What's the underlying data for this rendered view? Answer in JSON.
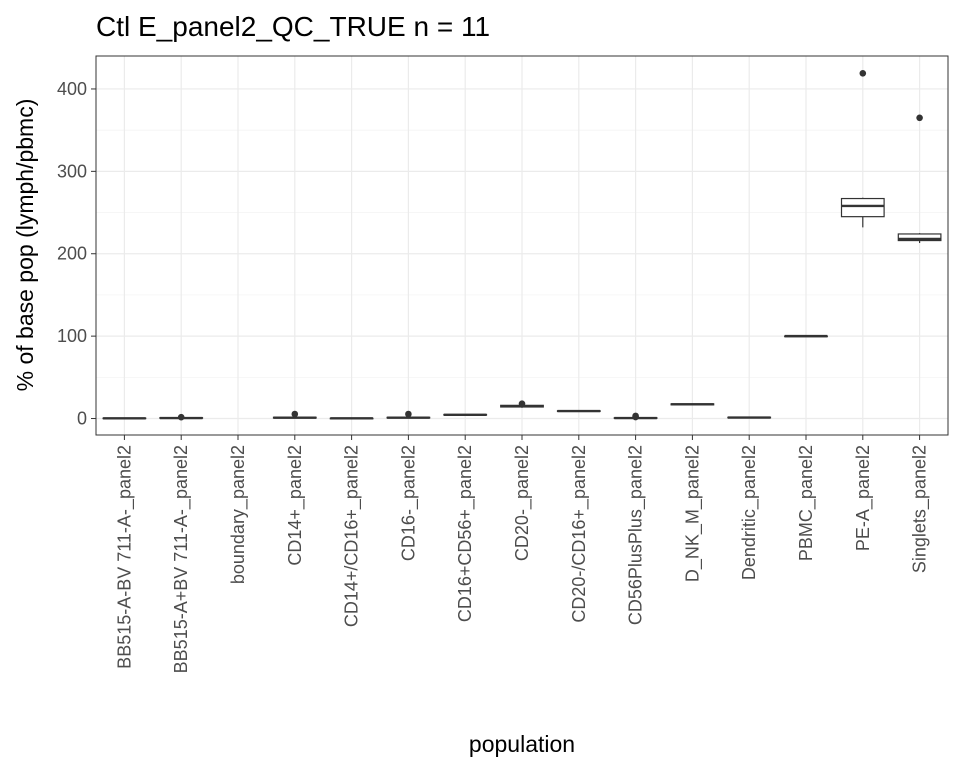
{
  "chart_data": {
    "type": "boxplot",
    "title": "Ctl E_panel2_QC_TRUE n = 11",
    "xlabel": "population",
    "ylabel": "% of base pop (lymph/pbmc)",
    "ylim": [
      -20,
      440
    ],
    "yticks": [
      0,
      100,
      200,
      300,
      400
    ],
    "grid": true,
    "categories": [
      "BB515-A-BV 711-A-_panel2",
      "BB515-A+BV 711-A-_panel2",
      "boundary_panel2",
      "CD14+_panel2",
      "CD14+/CD16+_panel2",
      "CD16-_panel2",
      "CD16+CD56+_panel2",
      "CD20-_panel2",
      "CD20-/CD16+_panel2",
      "CD56PlusPlus_panel2",
      "D_NK_M_panel2",
      "Dendritic_panel2",
      "PBMC_panel2",
      "PE-A_panel2",
      "Singlets_panel2"
    ],
    "boxes": [
      {
        "min": 0.1,
        "q1": 0.2,
        "median": 0.3,
        "q3": 0.5,
        "max": 0.7,
        "outliers": []
      },
      {
        "min": 0.2,
        "q1": 0.4,
        "median": 0.6,
        "q3": 1.0,
        "max": 1.4,
        "outliers": [
          1.6
        ]
      },
      null,
      {
        "min": 0.3,
        "q1": 0.6,
        "median": 1.0,
        "q3": 1.5,
        "max": 2.0,
        "outliers": [
          5.5
        ]
      },
      {
        "min": 0.0,
        "q1": 0.1,
        "median": 0.2,
        "q3": 0.3,
        "max": 0.5,
        "outliers": []
      },
      {
        "min": 0.3,
        "q1": 0.7,
        "median": 1.0,
        "q3": 1.4,
        "max": 2.0,
        "outliers": [
          5.5
        ]
      },
      {
        "min": 3.8,
        "q1": 4.2,
        "median": 4.5,
        "q3": 4.9,
        "max": 5.2,
        "outliers": []
      },
      {
        "min": 13.0,
        "q1": 14.0,
        "median": 15.0,
        "q3": 16.0,
        "max": 16.8,
        "outliers": [
          18.0
        ]
      },
      {
        "min": 8.0,
        "q1": 8.6,
        "median": 9.0,
        "q3": 9.4,
        "max": 9.8,
        "outliers": []
      },
      {
        "min": 0.1,
        "q1": 0.3,
        "median": 0.5,
        "q3": 0.9,
        "max": 1.2,
        "outliers": [
          1.8,
          3.2
        ]
      },
      {
        "min": 16.0,
        "q1": 16.6,
        "median": 17.2,
        "q3": 17.8,
        "max": 18.3,
        "outliers": []
      },
      {
        "min": 0.6,
        "q1": 0.9,
        "median": 1.2,
        "q3": 1.5,
        "max": 1.8,
        "outliers": []
      },
      {
        "min": 100.0,
        "q1": 100.0,
        "median": 100.0,
        "q3": 100.0,
        "max": 100.0,
        "outliers": []
      },
      {
        "min": 232.0,
        "q1": 245.0,
        "median": 258.0,
        "q3": 267.0,
        "max": 268.0,
        "outliers": [
          419.0
        ]
      },
      {
        "min": 213.0,
        "q1": 216.0,
        "median": 218.0,
        "q3": 224.0,
        "max": 225.0,
        "outliers": [
          365.0
        ]
      }
    ]
  }
}
